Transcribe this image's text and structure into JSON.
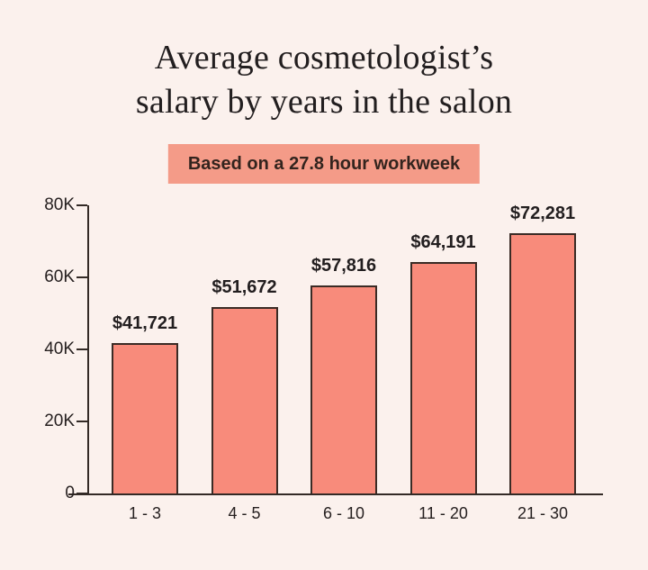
{
  "header": {
    "title_line1": "Average cosmetologist’s",
    "title_line2": "salary by years in the salon",
    "badge_label": "Based on a 27.8 hour workweek"
  },
  "chart_data": {
    "type": "bar",
    "title": "Average cosmetologist’s salary by years in the salon",
    "subtitle": "Based on a 27.8 hour workweek",
    "categories": [
      "1 - 3",
      "4 - 5",
      "6 - 10",
      "11 - 20",
      "21 - 30"
    ],
    "values": [
      41721,
      51672,
      57816,
      64191,
      72281
    ],
    "bar_labels": [
      "$41,721",
      "$51,672",
      "$57,816",
      "$64,191",
      "$72,281"
    ],
    "y_ticks": [
      {
        "label": "0",
        "value": 0
      },
      {
        "label": "20K",
        "value": 20000
      },
      {
        "label": "40K",
        "value": 40000
      },
      {
        "label": "60K",
        "value": 60000
      },
      {
        "label": "80K",
        "value": 80000
      }
    ],
    "ylim": [
      0,
      80000
    ],
    "xlabel": "",
    "ylabel": "",
    "grid": false,
    "legend": false,
    "colors": {
      "background": "#FBF1ED",
      "bar_fill": "#F88B7B",
      "bar_border": "#3A2B25",
      "axis": "#332A26",
      "title_text": "#221E1F",
      "label_text": "#262020",
      "badge_background": "#F49B88",
      "badge_text": "#33241E"
    }
  }
}
